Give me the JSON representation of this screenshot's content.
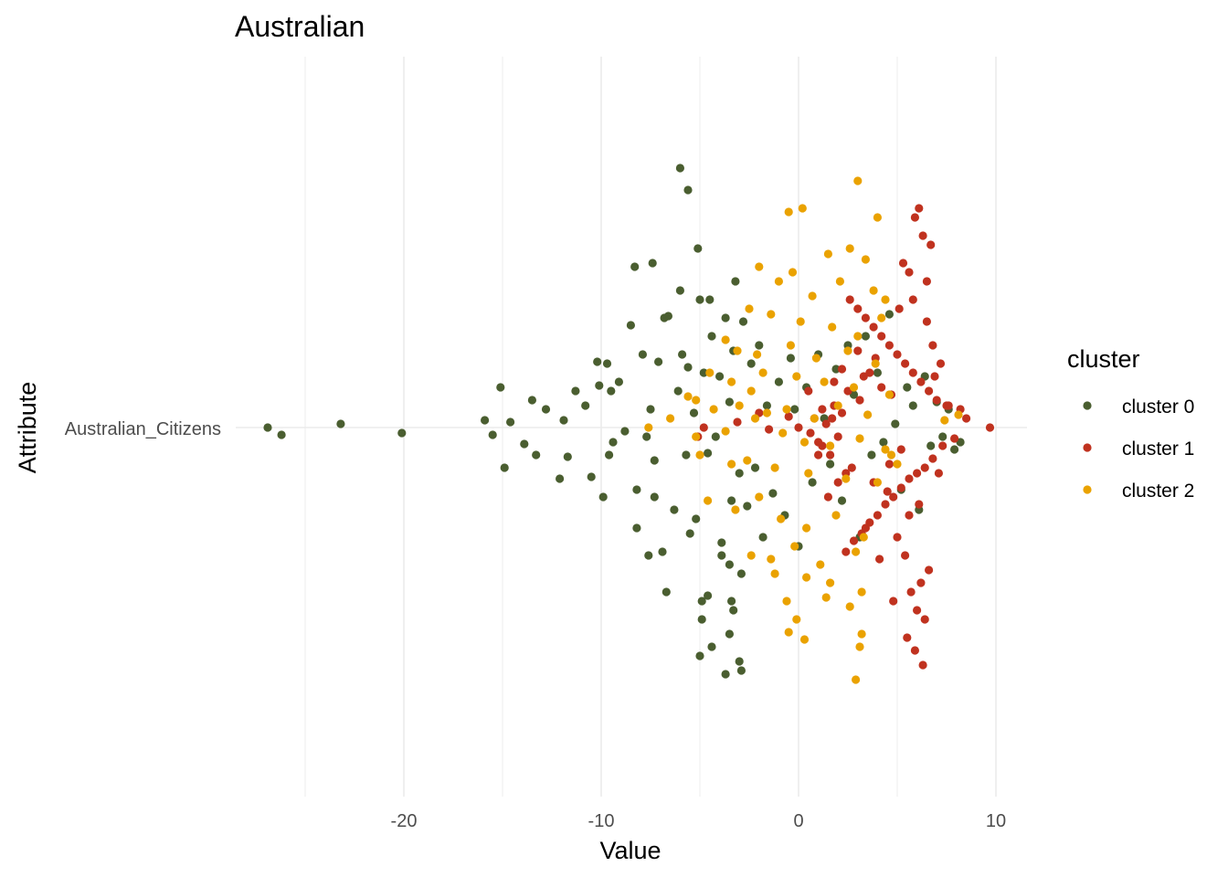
{
  "chart_data": {
    "type": "scatter",
    "title": "Australian",
    "xlabel": "Value",
    "ylabel": "Attribute",
    "xlim": [
      -26.8,
      11.7
    ],
    "x_ticks": [
      -20,
      -10,
      0,
      10
    ],
    "y_categories": [
      "Australian_Citizens"
    ],
    "grid": true,
    "legend": {
      "title": "cluster",
      "position": "right",
      "entries": [
        "cluster 0",
        "cluster 1",
        "cluster 2"
      ]
    },
    "colors": {
      "cluster 0": "#4a5e30",
      "cluster 1": "#c0321f",
      "cluster 2": "#eaa200"
    },
    "series": [
      {
        "name": "cluster 0",
        "color": "#4a5e30",
        "x": [
          -26.9,
          -26.2,
          -23.2,
          -20.1,
          -15.9,
          -15.5,
          -15.1,
          -14.9,
          -14.6,
          -13.9,
          -13.5,
          -13.3,
          -12.8,
          -12.1,
          -11.9,
          -11.7,
          -11.3,
          -10.8,
          -10.5,
          -10.2,
          -10.1,
          -9.9,
          -9.7,
          -9.6,
          -9.5,
          -9.4,
          -9.1,
          -8.8,
          -8.5,
          -8.2,
          -7.9,
          -7.7,
          -7.5,
          -7.3,
          -7.1,
          -6.9,
          -6.6,
          -6.3,
          -6.1,
          -5.9,
          -5.7,
          -5.6,
          -5.5,
          -5.3,
          -5.2,
          -5.0,
          -4.9,
          -4.8,
          -4.6,
          -4.4,
          -4.2,
          -4.0,
          -3.9,
          -3.7,
          -3.5,
          -3.4,
          -3.2,
          -3.0,
          -2.8,
          -2.6,
          -2.4,
          -2.2,
          -2.0,
          -1.8,
          -1.6,
          -1.3,
          -1.0,
          -0.7,
          -0.4,
          -0.2,
          0.0,
          0.4,
          0.7,
          1.0,
          1.3,
          1.6,
          1.9,
          2.2,
          2.5,
          2.8,
          3.1,
          3.4,
          3.7,
          4.0,
          4.3,
          4.6,
          4.9,
          5.2,
          5.5,
          5.8,
          6.1,
          6.4,
          6.7,
          7.0,
          7.3,
          7.6,
          7.9,
          8.2,
          -7.6,
          -5.0,
          -3.7,
          -3.4,
          -3.3,
          -2.9,
          -6.0,
          -5.6,
          -8.3,
          -7.4,
          -6.8,
          -6.0,
          -5.1,
          -4.5,
          -3.3,
          -7.3,
          -8.2,
          -6.7,
          -4.6,
          -3.9,
          -3.5,
          -2.9,
          -4.9,
          -3.5,
          -4.4,
          -3.0
        ],
        "y": [
          0.0,
          -0.04,
          0.02,
          -0.03,
          0.04,
          -0.04,
          0.22,
          -0.22,
          0.03,
          -0.09,
          0.15,
          -0.15,
          0.1,
          -0.28,
          0.04,
          -0.16,
          0.2,
          0.12,
          -0.27,
          0.36,
          0.23,
          -0.38,
          0.35,
          -0.15,
          0.2,
          -0.08,
          0.25,
          -0.02,
          0.56,
          -0.34,
          0.4,
          -0.05,
          0.1,
          -0.18,
          0.36,
          -0.68,
          0.61,
          -0.45,
          0.2,
          0.4,
          -0.15,
          0.33,
          -0.58,
          0.08,
          -0.5,
          0.7,
          -0.95,
          0.3,
          -0.14,
          0.5,
          -0.05,
          0.28,
          -0.7,
          0.6,
          0.14,
          -0.4,
          0.8,
          -0.25,
          0.58,
          -0.43,
          0.35,
          -0.22,
          0.45,
          -0.6,
          0.12,
          -0.36,
          0.25,
          -0.48,
          0.38,
          0.1,
          -0.65,
          0.22,
          -0.3,
          0.4,
          0.05,
          -0.2,
          0.32,
          -0.4,
          0.45,
          0.18,
          -0.6,
          0.5,
          -0.15,
          0.3,
          -0.08,
          0.62,
          0.02,
          -0.34,
          0.22,
          0.12,
          -0.45,
          0.28,
          -0.1,
          0.14,
          -0.05,
          0.1,
          -0.12,
          -0.08,
          -0.7,
          -1.25,
          -1.35,
          -0.95,
          -1.0,
          -1.33,
          1.42,
          1.3,
          0.88,
          0.9,
          0.6,
          0.75,
          0.98,
          0.7,
          0.42,
          -0.38,
          -0.55,
          -0.9,
          -0.92,
          -0.63,
          -0.75,
          -0.8,
          -1.05,
          -1.13,
          -1.2,
          -1.28
        ],
        "xx": []
      },
      {
        "name": "cluster 1",
        "color": "#c0321f",
        "x": [
          9.7,
          8.5,
          8.2,
          7.9,
          7.6,
          7.3,
          7.0,
          6.8,
          6.6,
          6.4,
          6.2,
          6.0,
          5.8,
          5.6,
          5.4,
          5.2,
          5.0,
          4.8,
          4.6,
          4.4,
          4.2,
          4.0,
          3.8,
          3.6,
          3.4,
          3.2,
          3.0,
          2.8,
          2.6,
          2.4,
          2.2,
          2.0,
          1.8,
          1.6,
          1.4,
          1.2,
          1.0,
          0.8,
          0.6,
          6.3,
          5.9,
          6.7,
          5.3,
          5.6,
          6.1,
          6.5,
          5.8,
          5.1,
          6.0,
          6.4,
          5.5,
          6.2,
          5.7,
          6.6,
          5.4,
          5.9,
          6.3,
          4.8,
          4.1,
          3.4,
          7.1,
          6.9,
          7.5,
          7.2,
          6.8,
          6.5,
          6.1,
          5.6,
          5.0,
          4.5,
          3.9,
          3.3,
          2.7,
          2.2,
          1.7,
          -4.8,
          -5.1,
          -3.1,
          -2.0,
          -1.5,
          -0.5,
          4.7,
          4.2,
          3.6,
          3.0,
          2.5,
          2.0,
          1.5,
          1.0,
          0.5,
          0.0,
          5.2,
          4.6,
          3.8,
          3.1,
          2.4,
          1.8,
          1.2
        ],
        "y": [
          0.0,
          0.05,
          0.1,
          -0.06,
          0.12,
          -0.1,
          0.15,
          -0.17,
          0.2,
          -0.22,
          0.25,
          -0.25,
          0.3,
          -0.28,
          0.35,
          -0.33,
          0.4,
          -0.38,
          0.45,
          -0.42,
          0.5,
          -0.48,
          0.55,
          -0.52,
          0.6,
          -0.58,
          0.65,
          -0.62,
          0.7,
          -0.68,
          0.08,
          -0.05,
          0.12,
          -0.15,
          0.02,
          0.1,
          -0.08,
          0.05,
          -0.03,
          1.05,
          1.15,
          1.0,
          0.9,
          0.85,
          1.2,
          0.8,
          0.7,
          0.65,
          -1.0,
          -1.05,
          -1.15,
          -0.85,
          -0.9,
          -0.78,
          -0.7,
          -1.22,
          -1.3,
          -0.95,
          -0.72,
          -0.55,
          -0.25,
          0.28,
          0.12,
          0.35,
          0.45,
          0.58,
          -0.42,
          -0.48,
          -0.6,
          -0.35,
          0.38,
          0.28,
          -0.22,
          0.32,
          0.05,
          0.0,
          -0.05,
          0.03,
          0.08,
          -0.01,
          0.06,
          0.18,
          0.22,
          0.3,
          0.42,
          0.2,
          -0.3,
          -0.38,
          -0.15,
          0.2,
          0.0,
          -0.12,
          -0.2,
          -0.3,
          0.15,
          -0.25,
          0.25,
          -0.1
        ]
      },
      {
        "name": "cluster 2",
        "color": "#eaa200",
        "x": [
          3.0,
          0.2,
          -0.5,
          1.5,
          2.6,
          3.4,
          4.0,
          -0.3,
          -2.0,
          -1.0,
          0.7,
          2.1,
          3.8,
          4.4,
          -2.5,
          -1.4,
          0.1,
          1.7,
          3.0,
          4.2,
          -3.7,
          -3.1,
          -2.1,
          -0.4,
          0.9,
          2.5,
          3.9,
          -4.5,
          -3.4,
          -2.4,
          -1.8,
          -0.1,
          1.3,
          2.8,
          4.6,
          -5.2,
          -4.3,
          -3.0,
          -1.6,
          -0.6,
          0.8,
          2.0,
          3.5,
          -7.6,
          -6.5,
          -5.2,
          -3.7,
          -2.2,
          -0.8,
          0.3,
          1.6,
          3.1,
          4.4,
          -5.0,
          -3.4,
          -2.6,
          -1.2,
          0.5,
          2.4,
          4.0,
          -4.6,
          -3.2,
          -2.0,
          -0.9,
          0.4,
          1.9,
          3.3,
          -2.4,
          -1.4,
          -0.2,
          1.1,
          2.9,
          -1.2,
          0.4,
          1.6,
          3.2,
          -0.6,
          1.4,
          2.6,
          -0.1,
          3.2,
          -0.5,
          0.3,
          3.1,
          2.9,
          -5.6,
          5.0,
          4.7,
          8.1,
          7.4
        ],
        "y": [
          1.35,
          1.2,
          1.18,
          0.95,
          0.98,
          0.92,
          1.15,
          0.85,
          0.88,
          0.8,
          0.72,
          0.8,
          0.75,
          0.7,
          0.65,
          0.62,
          0.58,
          0.55,
          0.5,
          0.6,
          0.48,
          0.42,
          0.4,
          0.45,
          0.38,
          0.42,
          0.35,
          0.3,
          0.25,
          0.2,
          0.3,
          0.28,
          0.25,
          0.22,
          0.18,
          0.15,
          0.1,
          0.12,
          0.08,
          0.1,
          0.05,
          0.12,
          0.07,
          0.0,
          0.05,
          -0.05,
          -0.02,
          0.05,
          -0.03,
          -0.08,
          -0.1,
          -0.06,
          -0.12,
          -0.15,
          -0.2,
          -0.18,
          -0.22,
          -0.25,
          -0.28,
          -0.3,
          -0.4,
          -0.45,
          -0.38,
          -0.5,
          -0.55,
          -0.48,
          -0.6,
          -0.7,
          -0.72,
          -0.65,
          -0.75,
          -0.68,
          -0.8,
          -0.82,
          -0.85,
          -0.9,
          -0.95,
          -0.93,
          -0.98,
          -1.05,
          -1.13,
          -1.12,
          -1.16,
          -1.2,
          -1.38,
          0.17,
          -0.2,
          -0.15,
          0.07,
          0.04
        ]
      }
    ]
  }
}
